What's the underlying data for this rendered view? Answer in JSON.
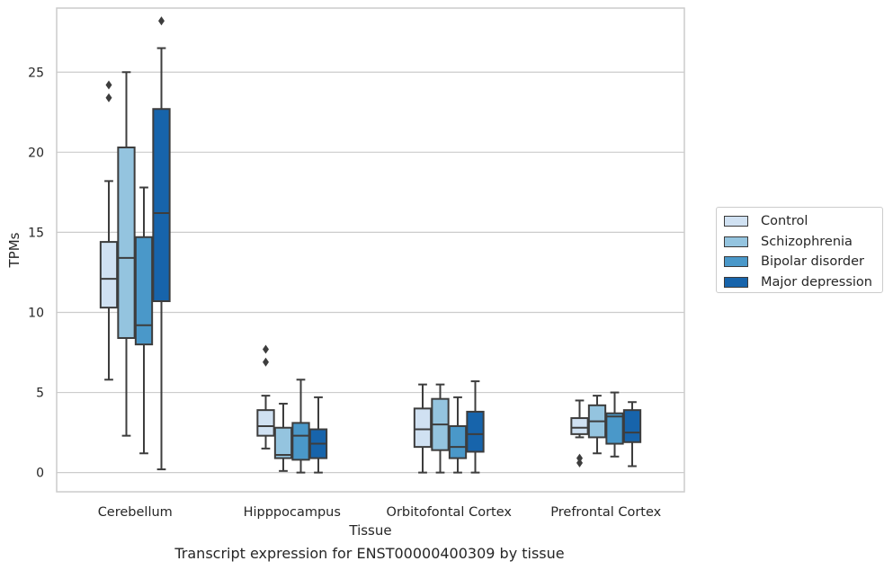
{
  "caption": "Transcript expression for ENST00000400309 by tissue",
  "legend": [
    {
      "label": "Control",
      "color": "#d0e1f2"
    },
    {
      "label": "Schizophrenia",
      "color": "#94c4df"
    },
    {
      "label": "Bipolar disorder",
      "color": "#4a98c9"
    },
    {
      "label": "Major depression",
      "color": "#1764ab"
    }
  ],
  "chart_data": {
    "type": "boxplot",
    "title": "",
    "xlabel": "Tissue",
    "ylabel": "TPMs",
    "ylim": [
      -1.2,
      29.0
    ],
    "yticks": [
      0,
      5,
      10,
      15,
      20,
      25
    ],
    "grid": "horizontal",
    "legend_position": "right",
    "categories": [
      "Cerebellum",
      "Hipppocampus",
      "Orbitofontal Cortex",
      "Prefrontal Cortex"
    ],
    "series": [
      {
        "name": "Control",
        "color": "#d0e1f2",
        "boxes": [
          {
            "whislo": 5.8,
            "q1": 10.3,
            "med": 12.1,
            "q3": 14.4,
            "whishi": 18.2,
            "fliers": [
              23.4,
              24.2
            ]
          },
          {
            "whislo": 1.5,
            "q1": 2.3,
            "med": 2.9,
            "q3": 3.9,
            "whishi": 4.8,
            "fliers": [
              6.9,
              7.7
            ]
          },
          {
            "whislo": 0.0,
            "q1": 1.6,
            "med": 2.7,
            "q3": 4.0,
            "whishi": 5.5,
            "fliers": []
          },
          {
            "whislo": 2.2,
            "q1": 2.4,
            "med": 2.8,
            "q3": 3.4,
            "whishi": 4.5,
            "fliers": [
              0.6,
              0.9
            ]
          }
        ]
      },
      {
        "name": "Schizophrenia",
        "color": "#94c4df",
        "boxes": [
          {
            "whislo": 2.3,
            "q1": 8.4,
            "med": 13.4,
            "q3": 20.3,
            "whishi": 25.0,
            "fliers": []
          },
          {
            "whislo": 0.1,
            "q1": 0.9,
            "med": 1.1,
            "q3": 2.8,
            "whishi": 4.3,
            "fliers": []
          },
          {
            "whislo": 0.0,
            "q1": 1.4,
            "med": 3.0,
            "q3": 4.6,
            "whishi": 5.5,
            "fliers": []
          },
          {
            "whislo": 1.2,
            "q1": 2.2,
            "med": 3.2,
            "q3": 4.2,
            "whishi": 4.8,
            "fliers": []
          }
        ]
      },
      {
        "name": "Bipolar disorder",
        "color": "#4a98c9",
        "boxes": [
          {
            "whislo": 1.2,
            "q1": 8.0,
            "med": 9.2,
            "q3": 14.7,
            "whishi": 17.8,
            "fliers": []
          },
          {
            "whislo": 0.0,
            "q1": 0.8,
            "med": 2.3,
            "q3": 3.1,
            "whishi": 5.8,
            "fliers": []
          },
          {
            "whislo": 0.0,
            "q1": 0.9,
            "med": 1.6,
            "q3": 2.9,
            "whishi": 4.7,
            "fliers": []
          },
          {
            "whislo": 1.0,
            "q1": 1.8,
            "med": 3.5,
            "q3": 3.7,
            "whishi": 5.0,
            "fliers": []
          }
        ]
      },
      {
        "name": "Major depression",
        "color": "#1764ab",
        "boxes": [
          {
            "whislo": 0.2,
            "q1": 10.7,
            "med": 16.2,
            "q3": 22.7,
            "whishi": 26.5,
            "fliers": [
              28.2
            ]
          },
          {
            "whislo": 0.0,
            "q1": 0.9,
            "med": 1.8,
            "q3": 2.7,
            "whishi": 4.7,
            "fliers": []
          },
          {
            "whislo": 0.0,
            "q1": 1.3,
            "med": 2.4,
            "q3": 3.8,
            "whishi": 5.7,
            "fliers": []
          },
          {
            "whislo": 0.4,
            "q1": 1.9,
            "med": 2.5,
            "q3": 3.9,
            "whishi": 4.4,
            "fliers": []
          }
        ]
      }
    ]
  }
}
